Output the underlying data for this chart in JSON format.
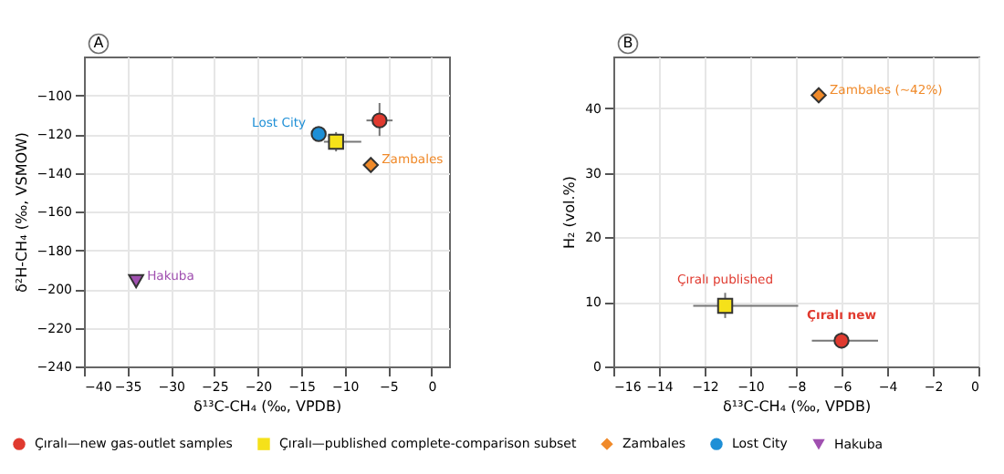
{
  "chart_data": [
    {
      "type": "scatter",
      "xlabel": "δ¹³C-CH₄ (‰, VPDB)",
      "ylabel": "δ²H-CH₄ (‰, VSMOW)",
      "xlim": [
        -40,
        2
      ],
      "xticks": [
        -40,
        -35,
        -30,
        -25,
        -20,
        -15,
        -10,
        -5,
        0
      ],
      "ylim": [
        -240,
        -80
      ],
      "yticks": [
        -240,
        -220,
        -200,
        -180,
        -160,
        -140,
        -120,
        -100
      ],
      "grid": true,
      "legend": "bottom",
      "annotations": [
        "A",
        {
          "text": "Lost City",
          "x": -13,
          "y": -120
        },
        {
          "text": "Zambales",
          "x": -7,
          "y": -136
        },
        {
          "text": "Hakuba",
          "x": -34,
          "y": -196
        }
      ],
      "series": [
        {
          "name": "Çıralı—new gas-outlet samples",
          "color": "#e03a2f",
          "marker": "circle",
          "x": [
            -6
          ],
          "values": [
            -113
          ],
          "errors": [
            [
              -121,
              -104
            ]
          ],
          "xerrors": [
            [
              -7.5,
              -4.5
            ]
          ]
        },
        {
          "name": "Çıralı—published complete-comparison subset",
          "color": "#f5e11a",
          "marker": "square",
          "x": [
            -11
          ],
          "values": [
            -124
          ],
          "errors": [
            [
              -129,
              -119
            ]
          ],
          "xerrors": [
            [
              -12.4,
              -8.1
            ]
          ]
        },
        {
          "name": "Zambales",
          "color": "#f08a2a",
          "marker": "diamond",
          "x": [
            -7
          ],
          "values": [
            -136
          ]
        },
        {
          "name": "Lost City",
          "color": "#1e8fd6",
          "marker": "circle",
          "x": [
            -13
          ],
          "values": [
            -120
          ]
        },
        {
          "name": "Hakuba",
          "color": "#a050b0",
          "marker": "triangle",
          "x": [
            -34
          ],
          "values": [
            -196
          ]
        }
      ]
    },
    {
      "type": "scatter",
      "xlabel": "δ¹³C-CH₄ (‰, VPDB)",
      "ylabel": "H₂ (vol.%)",
      "xlim": [
        -16,
        0
      ],
      "xticks": [
        -16,
        -14,
        -12,
        -10,
        -8,
        -6,
        -4,
        -2,
        0
      ],
      "ylim": [
        0,
        48
      ],
      "yticks": [
        0,
        10,
        20,
        30,
        40
      ],
      "grid": true,
      "annotations": [
        "B",
        {
          "text": "Zambales (~42%)",
          "x": -7,
          "y": 42
        },
        {
          "text": "Çıralı published",
          "x": -11.1,
          "y": 9.4
        },
        {
          "text": "Çıralı new",
          "x": -6,
          "y": 4
        }
      ],
      "series": [
        {
          "color": "#f5e11a",
          "marker": "square",
          "x": [
            -11.1
          ],
          "values": [
            9.4
          ],
          "errors": [
            [
              7.5,
              11.4
            ]
          ],
          "xerrors": [
            [
              -12.5,
              -7.9
            ]
          ]
        },
        {
          "color": "#e03a2f",
          "marker": "circle",
          "x": [
            -6
          ],
          "values": [
            4
          ],
          "errors": [
            [
              2.8,
              5.3
            ]
          ],
          "xerrors": [
            [
              -7.3,
              -4.4
            ]
          ]
        },
        {
          "color": "#f08a2a",
          "marker": "diamond",
          "x": [
            -7
          ],
          "values": [
            42
          ]
        }
      ]
    }
  ]
}
